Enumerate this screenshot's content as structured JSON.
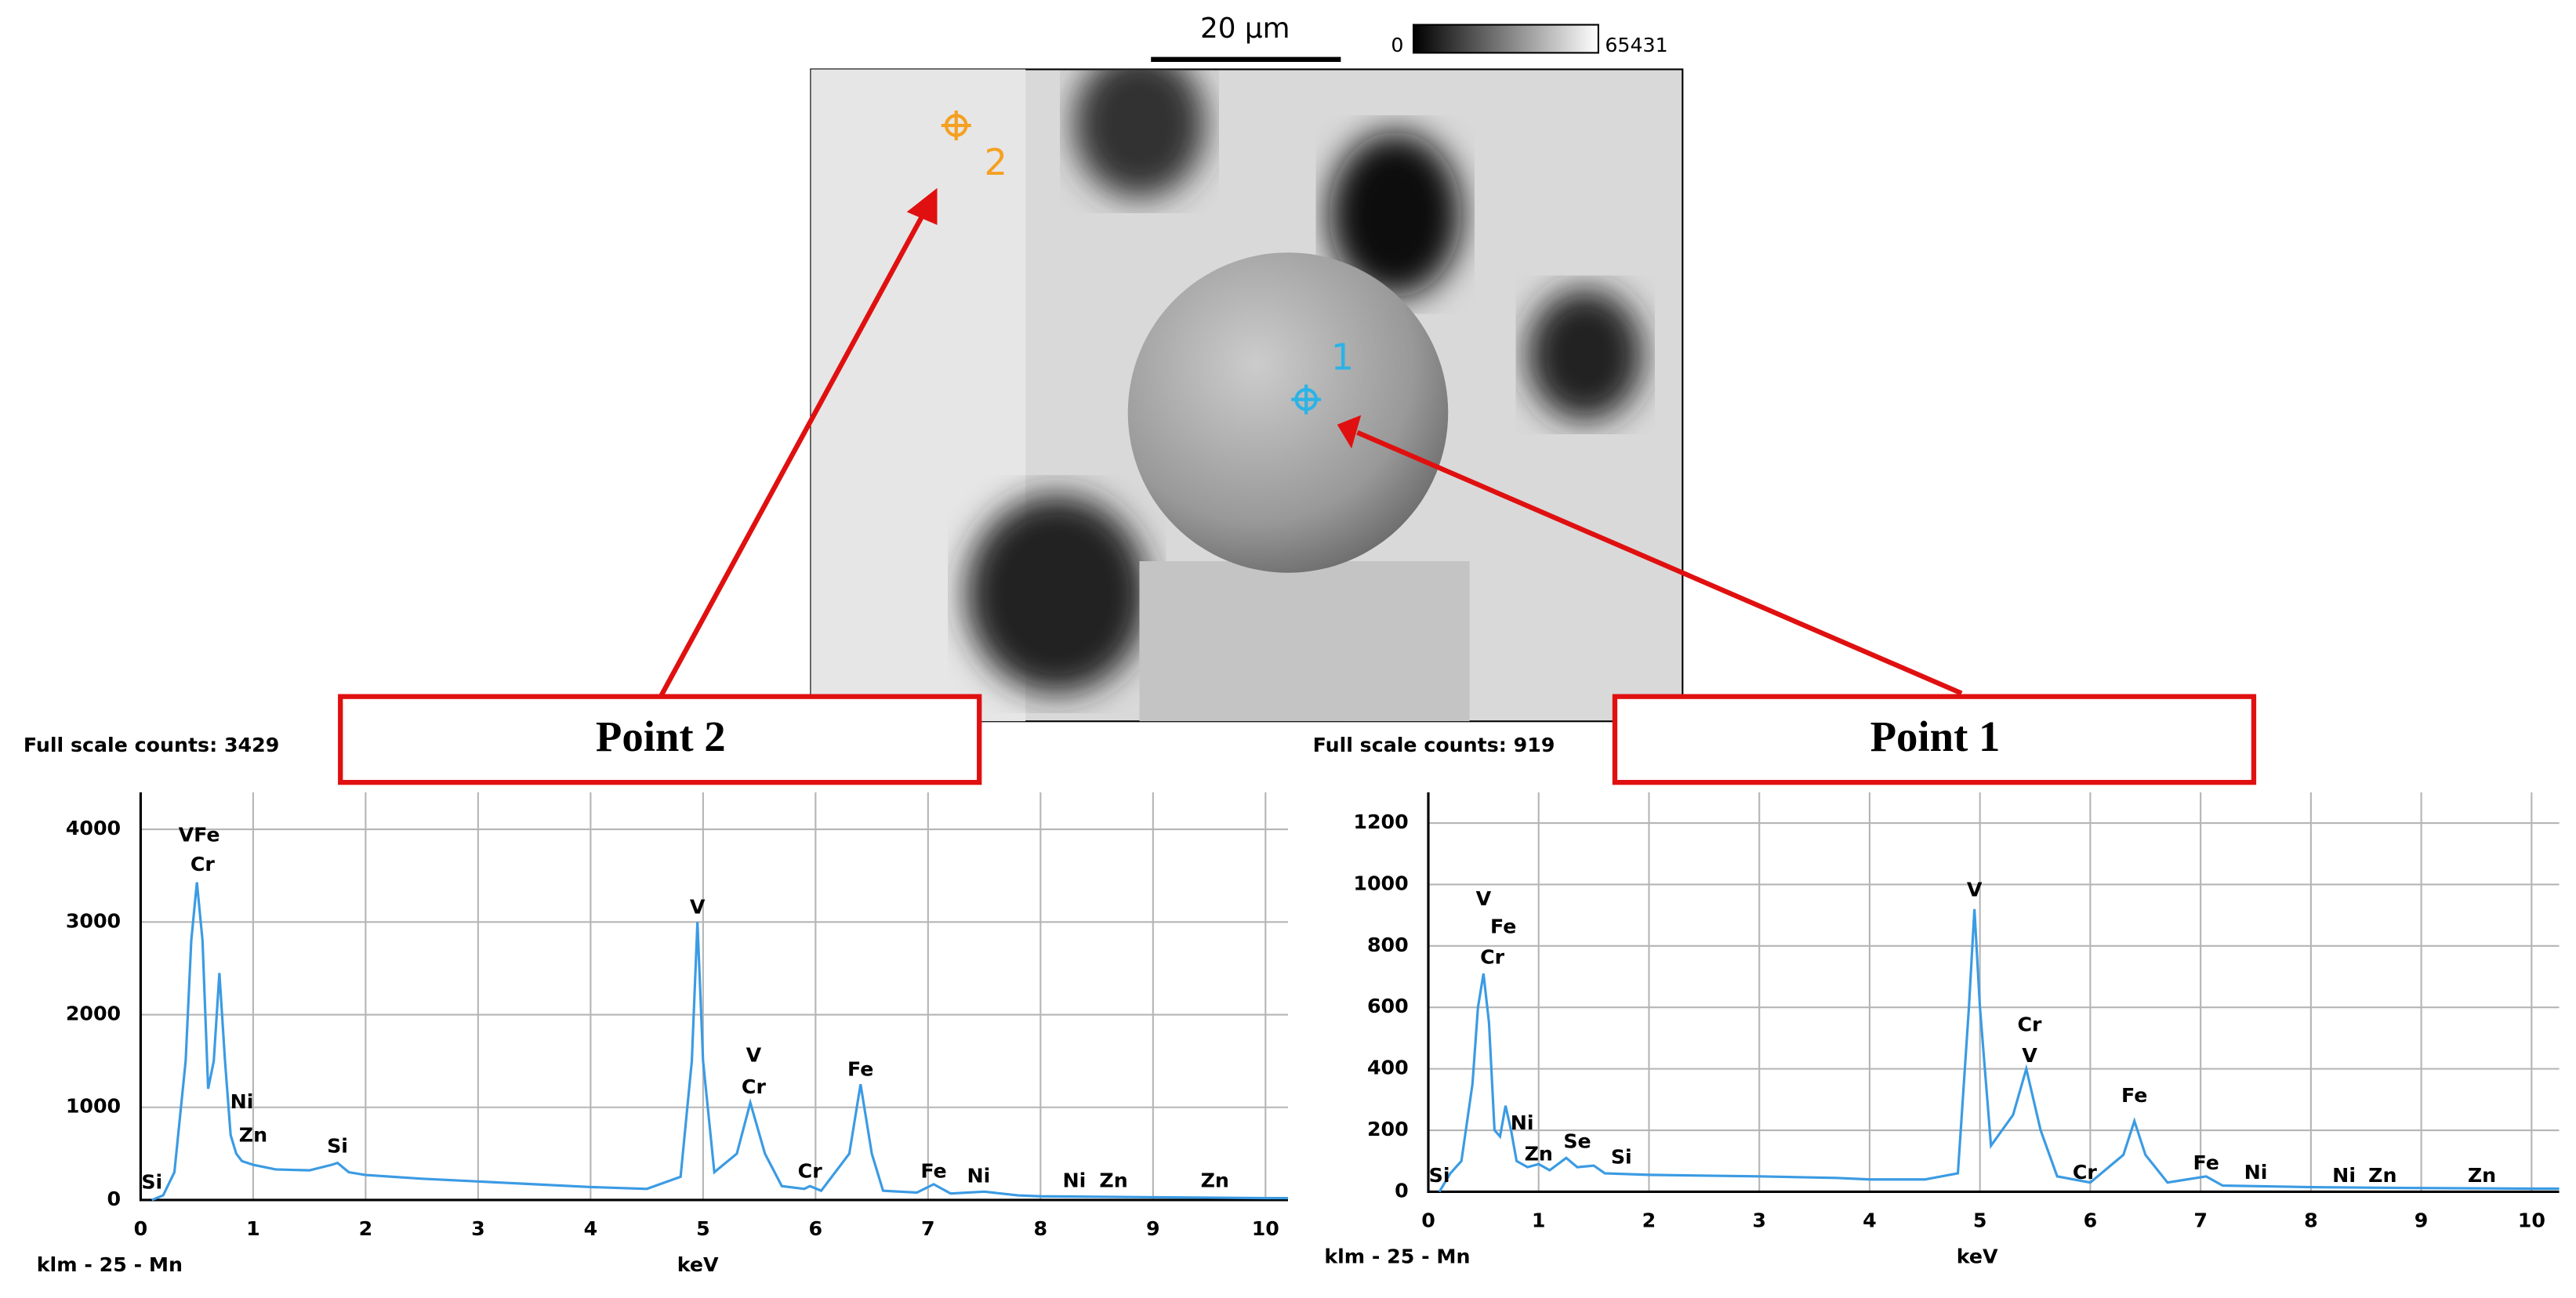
{
  "image": {
    "scale_bar": "20 µm",
    "colorbar_min": 0,
    "colorbar_max": 65431,
    "points": [
      {
        "label": "2",
        "color": "#f5a021"
      },
      {
        "label": "1",
        "color": "#2bb3e6"
      }
    ]
  },
  "callouts": [
    "Point 2",
    "Point 1"
  ],
  "chart_data": [
    {
      "type": "line",
      "subtitle": "Full scale counts: 3429",
      "note": "klm - 25 - Mn",
      "x_label": "keV",
      "xlim": [
        0,
        10.2
      ],
      "ylim": [
        0,
        4400
      ],
      "xticks": [
        0,
        1,
        2,
        3,
        4,
        5,
        6,
        7,
        8,
        9,
        10
      ],
      "yticks": [
        0,
        1000,
        2000,
        3000,
        4000
      ],
      "grid": true,
      "color": "#3b9be3",
      "x": [
        0.1,
        0.2,
        0.3,
        0.4,
        0.45,
        0.5,
        0.55,
        0.6,
        0.65,
        0.7,
        0.75,
        0.8,
        0.85,
        0.9,
        1.0,
        1.2,
        1.5,
        1.7,
        1.75,
        1.85,
        2.0,
        2.5,
        3,
        3.5,
        4,
        4.5,
        4.8,
        4.9,
        4.95,
        5.0,
        5.1,
        5.3,
        5.42,
        5.55,
        5.7,
        5.9,
        5.95,
        6.05,
        6.3,
        6.4,
        6.5,
        6.6,
        6.9,
        7.05,
        7.2,
        7.5,
        7.8,
        8,
        9,
        10,
        10.2
      ],
      "values": [
        0,
        50,
        300,
        1500,
        2800,
        3429,
        2800,
        1200,
        1500,
        2450,
        1500,
        700,
        500,
        420,
        380,
        330,
        320,
        380,
        400,
        300,
        270,
        230,
        200,
        170,
        140,
        120,
        250,
        1500,
        3000,
        1500,
        300,
        500,
        1050,
        500,
        150,
        120,
        150,
        100,
        500,
        1250,
        500,
        100,
        80,
        170,
        70,
        90,
        50,
        40,
        30,
        20,
        20
      ],
      "annotations": [
        {
          "text": "VFe",
          "x": 0.52,
          "y": 3930
        },
        {
          "text": "Cr",
          "x": 0.55,
          "y": 3610
        },
        {
          "text": "Ni",
          "x": 0.9,
          "y": 1050
        },
        {
          "text": "Zn",
          "x": 1.0,
          "y": 690
        },
        {
          "text": "Si",
          "x": 1.75,
          "y": 570
        },
        {
          "text": "Si",
          "x": 0.1,
          "y": 180
        },
        {
          "text": "V",
          "x": 4.95,
          "y": 3150
        },
        {
          "text": "V",
          "x": 5.45,
          "y": 1550
        },
        {
          "text": "Cr",
          "x": 5.45,
          "y": 1210
        },
        {
          "text": "Fe",
          "x": 6.4,
          "y": 1400
        },
        {
          "text": "Cr",
          "x": 5.95,
          "y": 300
        },
        {
          "text": "Fe",
          "x": 7.05,
          "y": 300
        },
        {
          "text": "Ni",
          "x": 7.45,
          "y": 250
        },
        {
          "text": "Ni",
          "x": 8.3,
          "y": 200
        },
        {
          "text": "Zn",
          "x": 8.65,
          "y": 200
        },
        {
          "text": "Zn",
          "x": 9.55,
          "y": 200
        }
      ]
    },
    {
      "type": "line",
      "subtitle": "Full scale counts: 919",
      "note": "klm - 25 - Mn",
      "x_label": "keV",
      "xlim": [
        0,
        10.25
      ],
      "ylim": [
        0,
        1300
      ],
      "xticks": [
        0,
        1,
        2,
        3,
        4,
        5,
        6,
        7,
        8,
        9,
        10
      ],
      "yticks": [
        0,
        200,
        400,
        600,
        800,
        1000,
        1200
      ],
      "grid": true,
      "color": "#3b9be3",
      "x": [
        0.1,
        0.2,
        0.3,
        0.4,
        0.45,
        0.5,
        0.55,
        0.6,
        0.65,
        0.7,
        0.75,
        0.8,
        0.9,
        1.0,
        1.1,
        1.25,
        1.35,
        1.5,
        1.6,
        2,
        3,
        3.7,
        4,
        4.5,
        4.8,
        4.9,
        4.95,
        5.0,
        5.1,
        5.3,
        5.42,
        5.55,
        5.7,
        6,
        6.3,
        6.4,
        6.5,
        6.7,
        7.05,
        7.2,
        8,
        9,
        10,
        10.25
      ],
      "values": [
        0,
        60,
        100,
        350,
        600,
        710,
        550,
        200,
        180,
        280,
        200,
        100,
        80,
        90,
        70,
        110,
        80,
        85,
        60,
        55,
        50,
        45,
        40,
        40,
        60,
        600,
        920,
        600,
        150,
        250,
        400,
        200,
        50,
        30,
        120,
        230,
        120,
        30,
        50,
        20,
        15,
        12,
        10,
        10
      ],
      "annotations": [
        {
          "text": "V",
          "x": 0.5,
          "y": 950
        },
        {
          "text": "Fe",
          "x": 0.68,
          "y": 860
        },
        {
          "text": "Cr",
          "x": 0.58,
          "y": 760
        },
        {
          "text": "Ni",
          "x": 0.85,
          "y": 220
        },
        {
          "text": "Zn",
          "x": 1.0,
          "y": 120
        },
        {
          "text": "Se",
          "x": 1.35,
          "y": 160
        },
        {
          "text": "Si",
          "x": 1.75,
          "y": 110
        },
        {
          "text": "Si",
          "x": 0.1,
          "y": 50
        },
        {
          "text": "V",
          "x": 4.95,
          "y": 980
        },
        {
          "text": "Cr",
          "x": 5.45,
          "y": 540
        },
        {
          "text": "V",
          "x": 5.45,
          "y": 440
        },
        {
          "text": "Fe",
          "x": 6.4,
          "y": 310
        },
        {
          "text": "Cr",
          "x": 5.95,
          "y": 60
        },
        {
          "text": "Fe",
          "x": 7.05,
          "y": 90
        },
        {
          "text": "Ni",
          "x": 7.5,
          "y": 60
        },
        {
          "text": "Ni",
          "x": 8.3,
          "y": 50
        },
        {
          "text": "Zn",
          "x": 8.65,
          "y": 50
        },
        {
          "text": "Zn",
          "x": 9.55,
          "y": 50
        }
      ]
    }
  ]
}
